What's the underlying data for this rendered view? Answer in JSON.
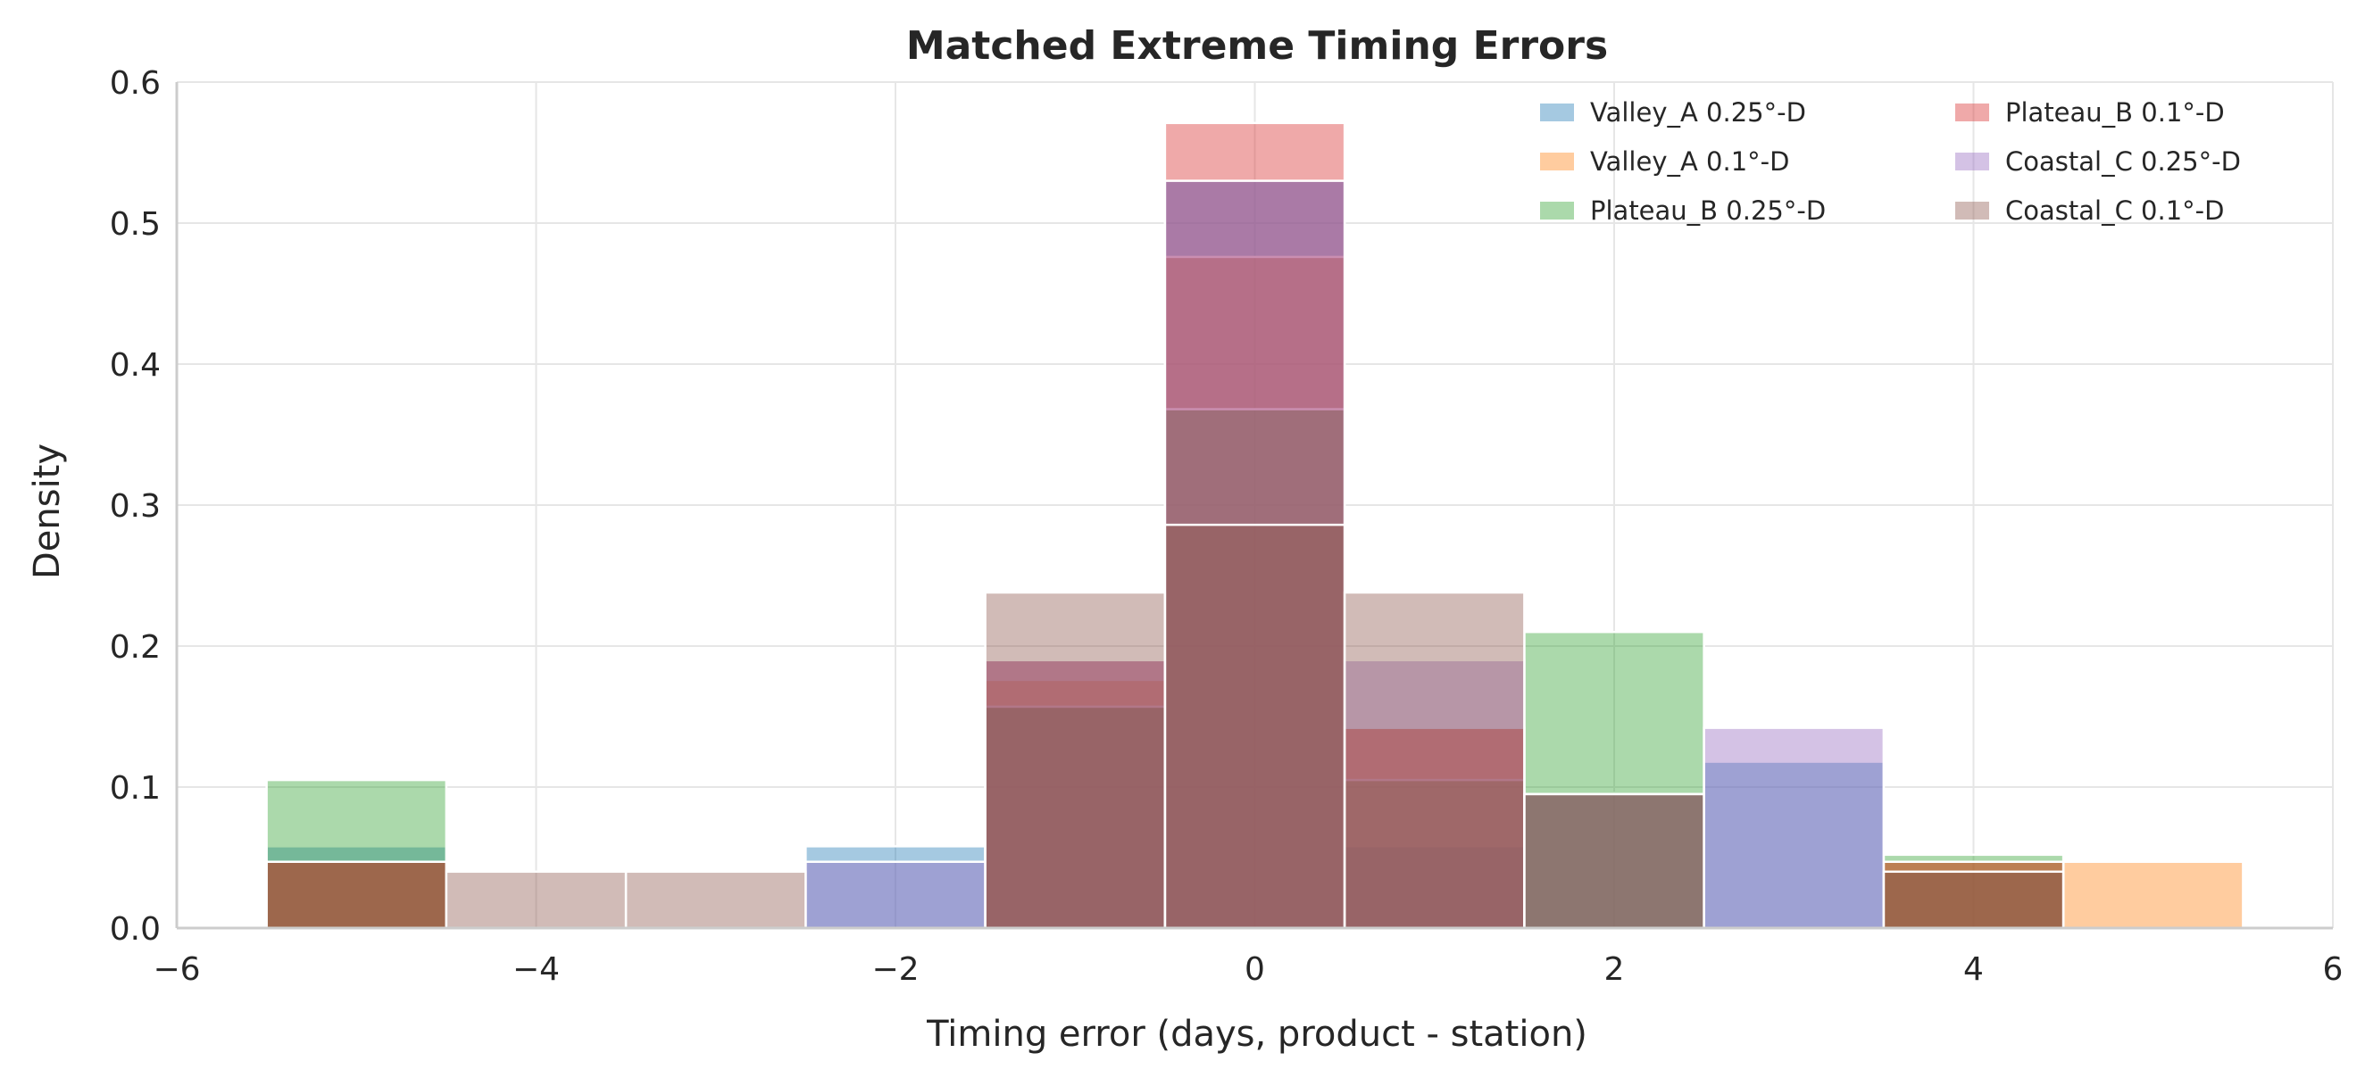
{
  "chart_data": {
    "type": "histogram",
    "title": "Matched Extreme Timing Errors",
    "xlabel": "Timing error (days, product - station)",
    "ylabel": "Density",
    "xlim": [
      -6,
      6
    ],
    "ylim": [
      0,
      0.6
    ],
    "xticks": [
      -6,
      -4,
      -2,
      0,
      2,
      4,
      6
    ],
    "xtick_labels": [
      "−6",
      "−4",
      "−2",
      "0",
      "2",
      "4",
      "6"
    ],
    "yticks": [
      0,
      0.1,
      0.2,
      0.3,
      0.4,
      0.5,
      0.6
    ],
    "ytick_labels": [
      "0.0",
      "0.1",
      "0.2",
      "0.3",
      "0.4",
      "0.5",
      "0.6"
    ],
    "grid": true,
    "legend_position": "top-right",
    "legend_columns": 2,
    "bin_edges": [
      -5.5,
      -4.5,
      -3.5,
      -2.5,
      -1.5,
      -0.5,
      0.5,
      1.5,
      2.5,
      3.5,
      4.5,
      5.5
    ],
    "bin_centers": [
      -5,
      -4,
      -3,
      -2,
      -1,
      0,
      1,
      2,
      3,
      4,
      5
    ],
    "series": [
      {
        "name": "Valley_A 0.25°-D",
        "color": "#1f77b4",
        "values": [
          0.058,
          0,
          0,
          0.058,
          0.157,
          0.53,
          0.058,
          0.096,
          0.118,
          0.04,
          0
        ]
      },
      {
        "name": "Valley_A 0.1°-D",
        "color": "#ff7f0e",
        "values": [
          0.047,
          0,
          0,
          0,
          0.176,
          0.476,
          0.142,
          0.095,
          0,
          0.047,
          0.047
        ]
      },
      {
        "name": "Plateau_B 0.25°-D",
        "color": "#2ca02c",
        "values": [
          0.105,
          0,
          0,
          0,
          0.157,
          0.368,
          0.105,
          0.21,
          0,
          0.052,
          0
        ]
      },
      {
        "name": "Plateau_B 0.1°-D",
        "color": "#d62728",
        "values": [
          0.047,
          0,
          0,
          0,
          0.19,
          0.571,
          0.142,
          0,
          0,
          0.047,
          0
        ]
      },
      {
        "name": "Coastal_C 0.25°-D",
        "color": "#9467bd",
        "values": [
          0,
          0,
          0,
          0.047,
          0.19,
          0.53,
          0.19,
          0.095,
          0.142,
          0,
          0
        ]
      },
      {
        "name": "Coastal_C 0.1°-D",
        "color": "#8c564b",
        "values": [
          0.047,
          0.04,
          0.04,
          0,
          0.238,
          0.286,
          0.238,
          0.095,
          0,
          0.04,
          0
        ]
      }
    ]
  }
}
